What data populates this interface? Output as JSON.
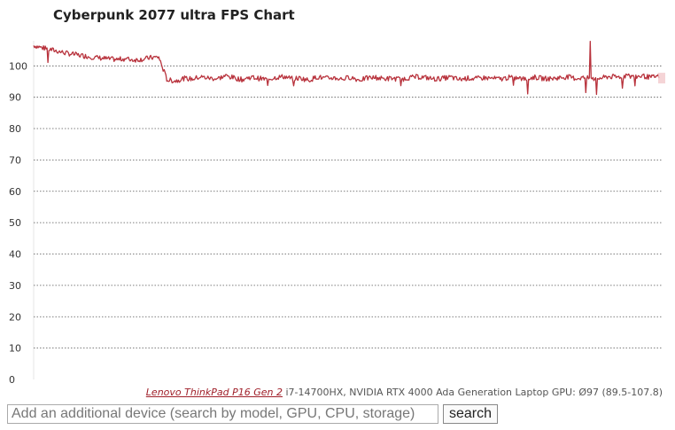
{
  "title": "Cyberpunk 2077 ultra FPS Chart",
  "chart_data": {
    "type": "line",
    "title": "Cyberpunk 2077 ultra FPS Chart",
    "xlabel": "",
    "ylabel": "",
    "ylim": [
      0,
      108
    ],
    "yticks": [
      0,
      10,
      20,
      30,
      40,
      50,
      60,
      70,
      80,
      90,
      100
    ],
    "grid": "horizontal dotted",
    "series_color": "#b8323c",
    "series": [
      {
        "name": "",
        "values": [
          106.5,
          105.8,
          105.2,
          104.6,
          104.0,
          103.6,
          103.2,
          102.8,
          102.5,
          102.2,
          102.0,
          102.3,
          101.9,
          102.1,
          102.6,
          102.8,
          95.5,
          95.2,
          96.0,
          95.8,
          96.5,
          96.1,
          95.9,
          96.8,
          96.2,
          95.6,
          96.4,
          96.0,
          95.7,
          96.3,
          96.6,
          95.9,
          96.1,
          95.4,
          96.5,
          96.0,
          96.2,
          95.8,
          96.4,
          95.5,
          96.1,
          96.3,
          95.9,
          96.0,
          95.7,
          96.2,
          96.5,
          96.3,
          95.8,
          96.0,
          96.4,
          95.6,
          96.1,
          95.9,
          96.2,
          96.0,
          95.8,
          96.3,
          96.1,
          95.7,
          96.4,
          96.0,
          95.9,
          96.2,
          96.5,
          96.0,
          96.3,
          95.8,
          96.1,
          96.6,
          96.4,
          96.9,
          96.5,
          96.8,
          96.3,
          96.7
        ],
        "min": 89.5,
        "max": 107.8
      }
    ],
    "legend": {
      "device_link": "Lenovo ThinkPad P16 Gen 2",
      "specs": "i7-14700HX, NVIDIA RTX 4000 Ada Generation Laptop GPU:",
      "stats": "Ø97 (89.5-107.8)"
    }
  },
  "search": {
    "placeholder": "Add an additional device (search by model, GPU, CPU, storage)",
    "button_label": "search"
  }
}
